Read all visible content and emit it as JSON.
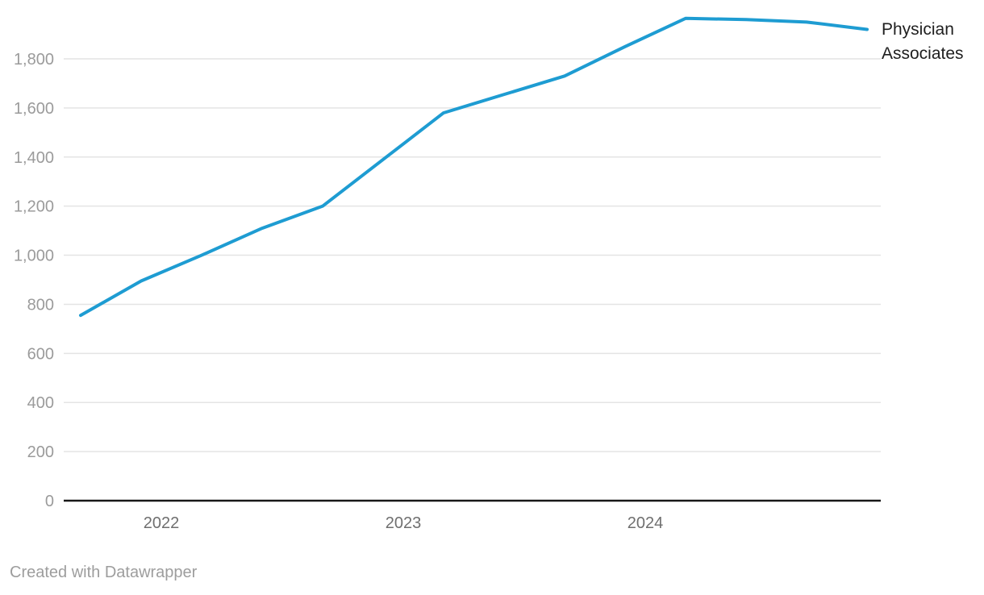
{
  "attribution": {
    "text": "Created with Datawrapper"
  },
  "chart_data": {
    "type": "line",
    "title": "",
    "series": [
      {
        "name": "Physician Associates",
        "x": [
          "2021-09",
          "2021-12",
          "2022-03",
          "2022-06",
          "2022-09",
          "2022-12",
          "2023-03",
          "2023-06",
          "2023-09",
          "2023-12",
          "2024-03",
          "2024-06",
          "2024-09",
          "2024-12"
        ],
        "values": [
          755,
          895,
          1000,
          1110,
          1200,
          1390,
          1580,
          1655,
          1730,
          1850,
          1965,
          1960,
          1950,
          1920
        ],
        "color": "#1e9cd2"
      }
    ],
    "y_axis": {
      "min": 0,
      "max": 1800,
      "tick_step": 200,
      "tick_labels": [
        "0",
        "200",
        "400",
        "600",
        "800",
        "1,000",
        "1,200",
        "1,400",
        "1,600",
        "1,800"
      ],
      "grid": true
    },
    "x_axis": {
      "tick_labels": [
        "2022",
        "2023",
        "2024"
      ],
      "tick_positions": [
        "2022-01",
        "2023-01",
        "2024-01"
      ]
    },
    "legend": {
      "position": "right-of-line-end"
    },
    "colors": {
      "line": "#1e9cd2",
      "grid": "#e4e4e4",
      "axis": "#181818",
      "y_label": "#9b9b9b",
      "x_label": "#6f6f6f",
      "legend_text": "#1f1f1f",
      "attribution": "#9d9d9d",
      "background": "#ffffff"
    }
  }
}
